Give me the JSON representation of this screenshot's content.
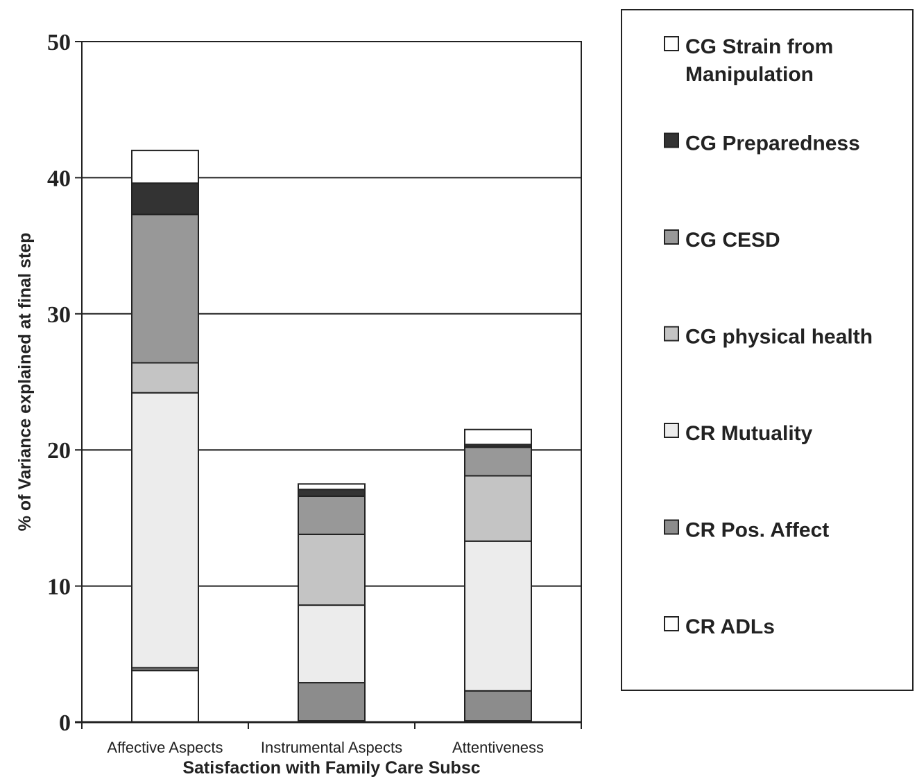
{
  "chart_data": {
    "type": "bar",
    "stacked": true,
    "xlabel": "Satisfaction with Family Care Subsc",
    "ylabel": "% of Variance explained at final step",
    "ylim": [
      0,
      50
    ],
    "yticks": [
      "0",
      "10",
      "20",
      "30",
      "40",
      "50"
    ],
    "grid": true,
    "legend_position": "right",
    "categories": [
      "Affective Aspects",
      "Instrumental Aspects",
      "Attentiveness"
    ],
    "series": [
      {
        "name": "CR ADLs",
        "color": "#ffffff",
        "values": [
          3.8,
          0.1,
          0.1
        ]
      },
      {
        "name": "CR Pos. Affect",
        "color": "#8c8c8c",
        "values": [
          0.2,
          2.8,
          2.2
        ]
      },
      {
        "name": "CR Mutuality",
        "color": "#ececec",
        "values": [
          20.2,
          5.7,
          11.0
        ]
      },
      {
        "name": "CG physical health",
        "color": "#c4c4c4",
        "values": [
          2.2,
          5.2,
          4.8
        ]
      },
      {
        "name": "CG CESD",
        "color": "#989898",
        "values": [
          10.9,
          2.8,
          2.1
        ]
      },
      {
        "name": "CG Preparedness",
        "color": "#333333",
        "values": [
          2.3,
          0.5,
          0.2
        ]
      },
      {
        "name": "CG Strain from Manipulation",
        "color": "#ffffff",
        "values": [
          2.4,
          0.4,
          1.1
        ]
      }
    ],
    "legend_items": [
      {
        "lines": [
          "CG Strain from",
          "Manipulation"
        ],
        "color": "#ffffff"
      },
      {
        "lines": [
          "CG Preparedness"
        ],
        "color": "#333333"
      },
      {
        "lines": [
          "CG CESD"
        ],
        "color": "#989898"
      },
      {
        "lines": [
          "CG physical health"
        ],
        "color": "#c4c4c4"
      },
      {
        "lines": [
          "CR Mutuality"
        ],
        "color": "#ececec"
      },
      {
        "lines": [
          "CR Pos. Affect"
        ],
        "color": "#8c8c8c"
      },
      {
        "lines": [
          "CR ADLs"
        ],
        "color": "#ffffff"
      }
    ]
  }
}
